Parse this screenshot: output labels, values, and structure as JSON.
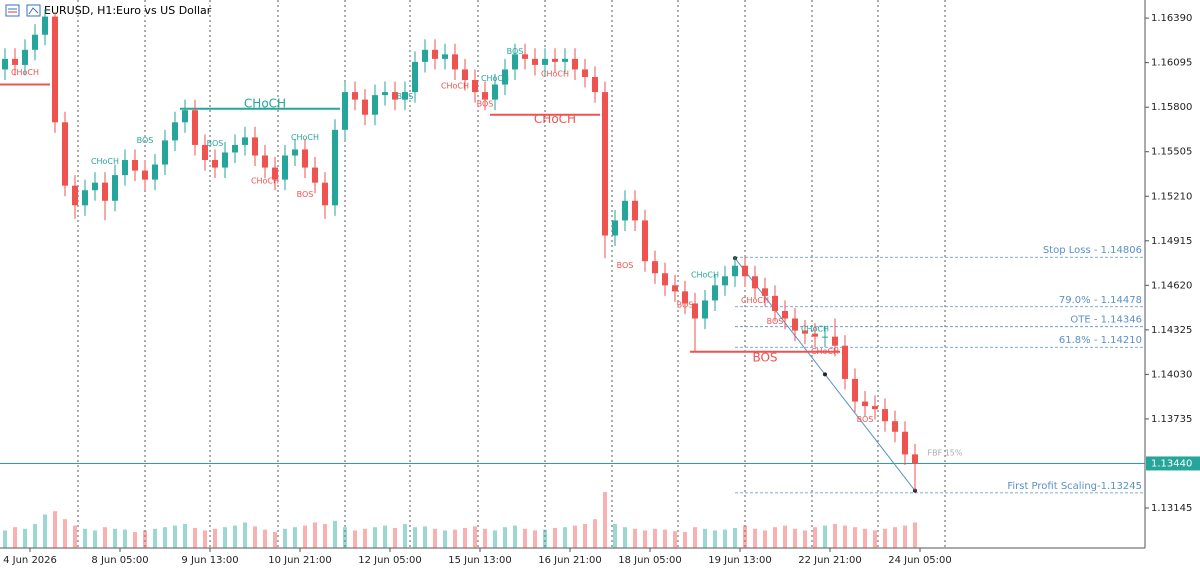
{
  "header": {
    "symbol": "EURUSD, H1:",
    "description": "Euro vs US Dollar"
  },
  "chart_data": {
    "type": "candlestick",
    "open": [
      1.1605,
      1.1612,
      1.1608,
      1.1618,
      1.1628,
      1.164,
      1.157,
      1.1528,
      1.1515,
      1.1525,
      1.153,
      1.1518,
      1.1535,
      1.1545,
      1.1538,
      1.1532,
      1.1542,
      1.1558,
      1.157,
      1.1578,
      1.1555,
      1.1545,
      1.154,
      1.155,
      1.1555,
      1.156,
      1.1548,
      1.154,
      1.1532,
      1.1548,
      1.1552,
      1.154,
      1.153,
      1.1515,
      1.1565,
      1.159,
      1.1585,
      1.1575,
      1.1588,
      1.159,
      1.1585,
      1.159,
      1.161,
      1.1618,
      1.1612,
      1.1615,
      1.1605,
      1.1598,
      1.159,
      1.1585,
      1.1595,
      1.1605,
      1.1615,
      1.1612,
      1.1608,
      1.1612,
      1.161,
      1.1612,
      1.1605,
      1.16,
      1.159,
      1.1495,
      1.1505,
      1.1518,
      1.1505,
      1.1478,
      1.147,
      1.1462,
      1.1458,
      1.145,
      1.144,
      1.1452,
      1.1462,
      1.1468,
      1.1475,
      1.1468,
      1.146,
      1.1455,
      1.1445,
      1.144,
      1.1432,
      1.143,
      1.1428,
      1.1428,
      1.1422,
      1.14,
      1.1385,
      1.1382,
      1.138,
      1.1372,
      1.1365,
      1.135
    ],
    "high": [
      1.1619,
      1.1619,
      1.1625,
      1.1635,
      1.1645,
      1.1643,
      1.1577,
      1.1535,
      1.1532,
      1.1537,
      1.1537,
      1.1542,
      1.1552,
      1.1552,
      1.1545,
      1.1549,
      1.1565,
      1.1577,
      1.1585,
      1.1585,
      1.1562,
      1.1552,
      1.1557,
      1.1562,
      1.1567,
      1.1567,
      1.1555,
      1.1547,
      1.1555,
      1.1559,
      1.1559,
      1.1547,
      1.1537,
      1.1572,
      1.1597,
      1.1597,
      1.1592,
      1.1595,
      1.1597,
      1.1597,
      1.1597,
      1.1617,
      1.1625,
      1.1625,
      1.1622,
      1.1622,
      1.1612,
      1.1605,
      1.1597,
      1.1602,
      1.1612,
      1.1622,
      1.1622,
      1.1619,
      1.1619,
      1.1619,
      1.1619,
      1.1619,
      1.1612,
      1.1607,
      1.1597,
      1.1512,
      1.1525,
      1.1525,
      1.1512,
      1.1485,
      1.1477,
      1.1469,
      1.1465,
      1.1457,
      1.1459,
      1.1469,
      1.1475,
      1.1481,
      1.1481,
      1.1475,
      1.1467,
      1.1462,
      1.1452,
      1.1447,
      1.1439,
      1.1437,
      1.1435,
      1.144,
      1.1429,
      1.1407,
      1.1392,
      1.1389,
      1.1387,
      1.1379,
      1.1372,
      1.1357
    ],
    "low": [
      1.1598,
      1.1601,
      1.1601,
      1.1611,
      1.1621,
      1.1563,
      1.1521,
      1.1506,
      1.1508,
      1.1518,
      1.1505,
      1.1511,
      1.1528,
      1.1531,
      1.1525,
      1.1525,
      1.1535,
      1.1551,
      1.1563,
      1.1548,
      1.1538,
      1.1533,
      1.1533,
      1.1543,
      1.1548,
      1.1541,
      1.1533,
      1.1525,
      1.1525,
      1.1541,
      1.1533,
      1.1523,
      1.1506,
      1.1508,
      1.1558,
      1.1578,
      1.1568,
      1.1568,
      1.1581,
      1.1578,
      1.1578,
      1.1583,
      1.1603,
      1.1605,
      1.1605,
      1.1598,
      1.1591,
      1.1583,
      1.1578,
      1.1578,
      1.1588,
      1.1598,
      1.1605,
      1.1601,
      1.1601,
      1.1603,
      1.1603,
      1.1598,
      1.1593,
      1.1583,
      1.148,
      1.1488,
      1.1498,
      1.1498,
      1.1471,
      1.1463,
      1.1455,
      1.1451,
      1.1443,
      1.1418,
      1.1433,
      1.1445,
      1.1455,
      1.1461,
      1.1461,
      1.1453,
      1.1448,
      1.1438,
      1.1433,
      1.1425,
      1.1423,
      1.1421,
      1.1421,
      1.1415,
      1.1393,
      1.1378,
      1.1375,
      1.1373,
      1.1365,
      1.1358,
      1.1343,
      1.1326
    ],
    "close": [
      1.1612,
      1.1608,
      1.1618,
      1.1628,
      1.164,
      1.157,
      1.1528,
      1.1515,
      1.1525,
      1.153,
      1.1518,
      1.1535,
      1.1545,
      1.1538,
      1.1532,
      1.1542,
      1.1558,
      1.157,
      1.1578,
      1.1555,
      1.1545,
      1.154,
      1.155,
      1.1555,
      1.156,
      1.1548,
      1.154,
      1.1532,
      1.1548,
      1.1552,
      1.154,
      1.153,
      1.1515,
      1.1565,
      1.159,
      1.1585,
      1.1575,
      1.1588,
      1.159,
      1.1585,
      1.159,
      1.161,
      1.1618,
      1.1612,
      1.1615,
      1.1605,
      1.1598,
      1.159,
      1.1585,
      1.1595,
      1.1605,
      1.1615,
      1.1612,
      1.1608,
      1.1612,
      1.161,
      1.1612,
      1.1605,
      1.16,
      1.159,
      1.1495,
      1.1505,
      1.1518,
      1.1505,
      1.1478,
      1.147,
      1.1462,
      1.1458,
      1.145,
      1.144,
      1.1452,
      1.1462,
      1.1468,
      1.1475,
      1.1468,
      1.146,
      1.1455,
      1.1445,
      1.144,
      1.1432,
      1.143,
      1.1428,
      1.1428,
      1.1422,
      1.14,
      1.1385,
      1.1382,
      1.138,
      1.1372,
      1.1365,
      1.135,
      1.1344
    ],
    "volume": [
      2200,
      2600,
      2400,
      3000,
      4200,
      4600,
      3600,
      2800,
      2400,
      2200,
      2600,
      2400,
      2300,
      2000,
      2200,
      2400,
      2600,
      2800,
      3000,
      2500,
      2200,
      2400,
      2600,
      2800,
      3200,
      2700,
      2300,
      2000,
      2400,
      2600,
      2800,
      3200,
      3000,
      3400,
      2600,
      2200,
      2400,
      2600,
      2800,
      2500,
      3000,
      2600,
      2700,
      2400,
      2200,
      2300,
      2500,
      2700,
      2400,
      2200,
      2600,
      2800,
      2400,
      2200,
      2300,
      2500,
      2600,
      2800,
      3000,
      3600,
      7000,
      3000,
      2600,
      2400,
      2200,
      2400,
      2300,
      2100,
      2000,
      2600,
      2400,
      2200,
      2300,
      2500,
      2800,
      2400,
      2200,
      2600,
      2800,
      2400,
      2200,
      2600,
      2800,
      3000,
      2800,
      2600,
      2400,
      2200,
      2400,
      2600,
      2800,
      3200
    ],
    "up_color": "#26a69a",
    "down_color": "#ef5350",
    "ylim": [
      1.1288,
      1.1651
    ],
    "yticks": [
      {
        "value": 1.1639,
        "label": "1.16390"
      },
      {
        "value": 1.16095,
        "label": "1.16095"
      },
      {
        "value": 1.158,
        "label": "1.15800"
      },
      {
        "value": 1.15505,
        "label": "1.15505"
      },
      {
        "value": 1.1521,
        "label": "1.15210"
      },
      {
        "value": 1.14915,
        "label": "1.14915"
      },
      {
        "value": 1.1462,
        "label": "1.14620"
      },
      {
        "value": 1.14325,
        "label": "1.14325"
      },
      {
        "value": 1.1403,
        "label": "1.14030"
      },
      {
        "value": 1.13735,
        "label": "1.13735"
      },
      {
        "value": 1.13145,
        "label": "1.13145"
      }
    ],
    "current_price": {
      "value": 1.1344,
      "label": "1.13440",
      "color": "#26a69a"
    },
    "x_labels": [
      {
        "index": 2,
        "label": "4 Jun 2026"
      },
      {
        "index": 11,
        "label": "8 Jun 05:00"
      },
      {
        "index": 20,
        "label": "9 Jun 13:00"
      },
      {
        "index": 29,
        "label": "10 Jun 21:00"
      },
      {
        "index": 38,
        "label": "12 Jun 05:00"
      },
      {
        "index": 47,
        "label": "15 Jun 13:00"
      },
      {
        "index": 56,
        "label": "16 Jun 21:00"
      },
      {
        "index": 64,
        "label": "18 Jun 05:00"
      },
      {
        "index": 73,
        "label": "19 Jun 13:00"
      },
      {
        "index": 82,
        "label": "22 Jun 21:00"
      },
      {
        "index": 91,
        "label": "24 Jun 05:00"
      }
    ],
    "structure_lines": [
      {
        "from": 0,
        "to": 4,
        "price": 1.1595,
        "color": "#ef5350"
      },
      {
        "from": 18,
        "to": 33,
        "price": 1.1579,
        "color": "#26a69a"
      },
      {
        "from": 49,
        "to": 59,
        "price": 1.1575,
        "color": "#ef5350"
      },
      {
        "from": 69,
        "to": 83,
        "price": 1.1418,
        "color": "#ef5350"
      }
    ],
    "labels": [
      {
        "text": "CHoCH",
        "index": 2,
        "price": 1.1603,
        "color": "#ef5350"
      },
      {
        "text": "CHoCH",
        "index": 26,
        "price": 1.1582,
        "color": "#26a69a",
        "large": true
      },
      {
        "text": "BOS",
        "index": 14,
        "price": 1.1558,
        "color": "#26a69a"
      },
      {
        "text": "CHoCH",
        "index": 10,
        "price": 1.1544,
        "color": "#26a69a"
      },
      {
        "text": "BOS",
        "index": 21,
        "price": 1.1556,
        "color": "#26a69a"
      },
      {
        "text": "CHoCH",
        "index": 26,
        "price": 1.1531,
        "color": "#ef5350"
      },
      {
        "text": "CHoCH",
        "index": 30,
        "price": 1.156,
        "color": "#26a69a"
      },
      {
        "text": "BOS",
        "index": 30,
        "price": 1.1522,
        "color": "#ef5350"
      },
      {
        "text": "BOS",
        "index": 40,
        "price": 1.1587,
        "color": "#26a69a"
      },
      {
        "text": "CHoCH",
        "index": 45,
        "price": 1.1594,
        "color": "#ef5350"
      },
      {
        "text": "CHoCH",
        "index": 49,
        "price": 1.1599,
        "color": "#26a69a"
      },
      {
        "text": "BOS",
        "index": 48,
        "price": 1.1582,
        "color": "#ef5350"
      },
      {
        "text": "BOS",
        "index": 51,
        "price": 1.1617,
        "color": "#26a69a"
      },
      {
        "text": "CHoCH",
        "index": 55,
        "price": 1.1602,
        "color": "#ef5350"
      },
      {
        "text": "CHoCH",
        "index": 55,
        "price": 1.1572,
        "color": "#ef5350",
        "large": true
      },
      {
        "text": "BOS",
        "index": 62,
        "price": 1.1475,
        "color": "#ef5350"
      },
      {
        "text": "CHoCH",
        "index": 70,
        "price": 1.1469,
        "color": "#26a69a"
      },
      {
        "text": "BOS",
        "index": 68,
        "price": 1.1449,
        "color": "#ef5350"
      },
      {
        "text": "CHoCH",
        "index": 75,
        "price": 1.1452,
        "color": "#ef5350"
      },
      {
        "text": "BOS",
        "index": 77,
        "price": 1.1438,
        "color": "#ef5350"
      },
      {
        "text": "CHoCH",
        "index": 81,
        "price": 1.1433,
        "color": "#26a69a"
      },
      {
        "text": "CHoCH",
        "index": 82,
        "price": 1.1418,
        "color": "#ef5350"
      },
      {
        "text": "BOS",
        "index": 76,
        "price": 1.1414,
        "color": "#ef5350",
        "large": true
      },
      {
        "text": "BOS",
        "index": 86,
        "price": 1.1373,
        "color": "#ef5350"
      },
      {
        "text": "FBF 15%",
        "index": 94,
        "price": 1.1351,
        "color": "#aaaaaa"
      }
    ],
    "levels": [
      {
        "label": "Stop Loss - 1.14806",
        "value": 1.14806,
        "from": 73
      },
      {
        "label": "79.0% - 1.14478",
        "value": 1.14478,
        "from": 73
      },
      {
        "label": "OTE - 1.14346",
        "value": 1.14346,
        "from": 73
      },
      {
        "label": "61.8% - 1.14210",
        "value": 1.1421,
        "from": 73
      },
      {
        "label": "First Profit Scaling-1.13245",
        "value": 1.13245,
        "from": 73
      }
    ],
    "level_color": "#5b8fc9",
    "trend_points": [
      {
        "index": 73,
        "price": 1.148
      },
      {
        "index": 82,
        "price": 1.1403
      },
      {
        "index": 91,
        "price": 1.1326
      }
    ]
  }
}
